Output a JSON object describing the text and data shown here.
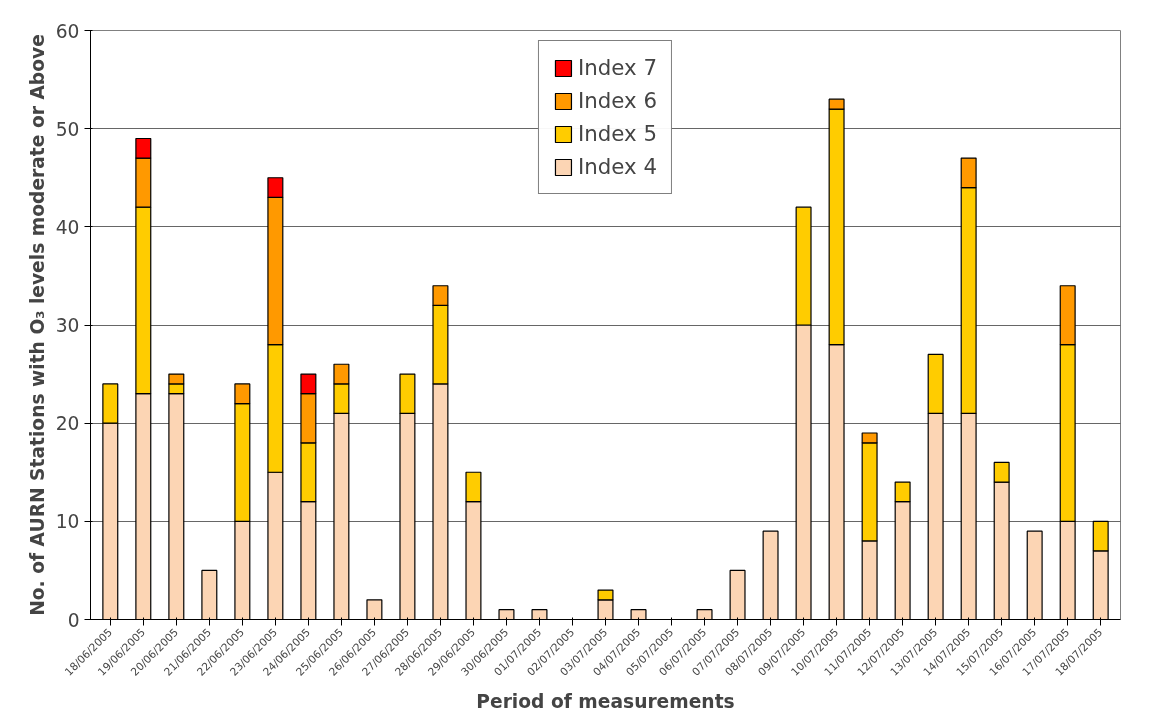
{
  "chart_data": {
    "type": "bar",
    "stacked": true,
    "xlabel": "Period of measurements",
    "ylabel": "No. of AURN Stations with O₃ levels moderate or Above",
    "categories": [
      "18/06/2005",
      "19/06/2005",
      "20/06/2005",
      "21/06/2005",
      "22/06/2005",
      "23/06/2005",
      "24/06/2005",
      "25/06/2005",
      "26/06/2005",
      "27/06/2005",
      "28/06/2005",
      "29/06/2005",
      "30/06/2005",
      "01/07/2005",
      "02/07/2005",
      "03/07/2005",
      "04/07/2005",
      "05/07/2005",
      "06/07/2005",
      "07/07/2005",
      "08/07/2005",
      "09/07/2005",
      "10/07/2005",
      "11/07/2005",
      "12/07/2005",
      "13/07/2005",
      "14/07/2005",
      "15/07/2005",
      "16/07/2005",
      "17/07/2005",
      "18/07/2005"
    ],
    "series": [
      {
        "name": "Index 4",
        "color": "#fcd5b4",
        "values": [
          20,
          23,
          23,
          5,
          10,
          15,
          12,
          21,
          2,
          21,
          24,
          12,
          1,
          1,
          null,
          2,
          1,
          null,
          1,
          5,
          9,
          30,
          28,
          8,
          12,
          21,
          21,
          14,
          9,
          10,
          7
        ]
      },
      {
        "name": "Index 5",
        "color": "#ffcc00",
        "values": [
          4,
          19,
          1,
          null,
          12,
          13,
          6,
          3,
          null,
          4,
          8,
          3,
          null,
          null,
          null,
          1,
          null,
          null,
          null,
          null,
          null,
          12,
          24,
          10,
          2,
          6,
          23,
          2,
          null,
          18,
          3
        ]
      },
      {
        "name": "Index 6",
        "color": "#ff9900",
        "values": [
          null,
          5,
          1,
          null,
          2,
          15,
          5,
          2,
          null,
          null,
          2,
          null,
          null,
          null,
          null,
          null,
          null,
          null,
          null,
          null,
          null,
          null,
          1,
          1,
          null,
          null,
          3,
          null,
          null,
          6,
          null
        ]
      },
      {
        "name": "Index 7",
        "color": "#ff0000",
        "values": [
          null,
          2,
          null,
          null,
          null,
          2,
          2,
          null,
          null,
          null,
          null,
          null,
          null,
          null,
          null,
          null,
          null,
          null,
          null,
          null,
          null,
          null,
          null,
          null,
          null,
          null,
          null,
          null,
          null,
          null,
          null
        ]
      }
    ],
    "ylim": [
      0,
      60
    ],
    "yticks": [
      0,
      10,
      20,
      30,
      40,
      50,
      60
    ],
    "grid": "y",
    "legend": "top"
  }
}
